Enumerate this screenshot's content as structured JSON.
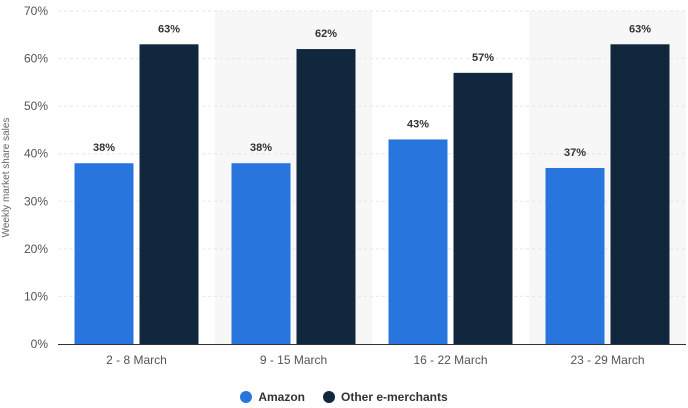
{
  "chart_data": {
    "type": "bar",
    "ylabel": "Weekly market share sales",
    "xlabel": "",
    "categories": [
      "2 - 8 March",
      "9 - 15 March",
      "16 - 22 March",
      "23 - 29 March"
    ],
    "series": [
      {
        "name": "Amazon",
        "color": "#2876dd",
        "values": [
          38,
          38,
          43,
          37
        ],
        "labels": [
          "38%",
          "38%",
          "43%",
          "37%"
        ]
      },
      {
        "name": "Other e-merchants",
        "color": "#10273d",
        "values": [
          63,
          62,
          57,
          63
        ],
        "labels": [
          "63%",
          "62%",
          "57%",
          "63%"
        ]
      }
    ],
    "ylim": [
      0,
      70
    ],
    "yticks": [
      {
        "value": 0,
        "label": "0%"
      },
      {
        "value": 10,
        "label": "10%"
      },
      {
        "value": 20,
        "label": "20%"
      },
      {
        "value": 30,
        "label": "30%"
      },
      {
        "value": 40,
        "label": "40%"
      },
      {
        "value": 50,
        "label": "50%"
      },
      {
        "value": 60,
        "label": "60%"
      },
      {
        "value": 70,
        "label": "70%"
      }
    ],
    "grid": true,
    "legend_position": "bottom",
    "colors": {
      "gridline": "#e6e6e6",
      "band": "#f7f7f7",
      "axis": "#333333"
    }
  }
}
